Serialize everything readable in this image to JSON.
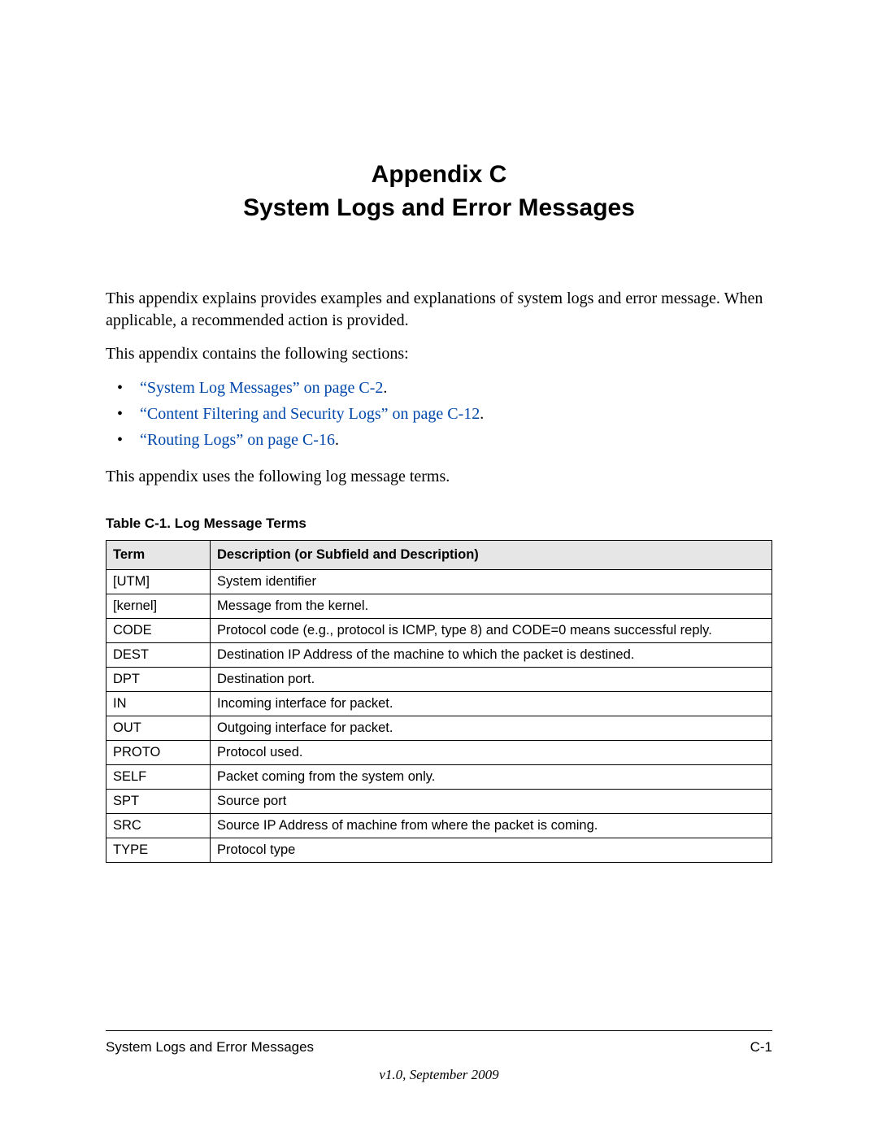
{
  "title": {
    "line1": "Appendix C",
    "line2": "System Logs and Error Messages"
  },
  "paragraphs": {
    "intro1": "This appendix explains provides examples and explanations of system logs and error message. When applicable, a recommended action is provided.",
    "intro2": "This appendix contains the following sections:",
    "after_list": "This appendix uses the following log message terms."
  },
  "bullets": [
    {
      "link_text": "“System Log Messages” on page C-2",
      "suffix": "."
    },
    {
      "link_text": "“Content Filtering and Security Logs” on page C-12",
      "suffix": "."
    },
    {
      "link_text": "“Routing Logs” on page C-16",
      "suffix": "."
    }
  ],
  "table": {
    "caption": "Table C-1.  Log Message Terms",
    "headers": {
      "term": "Term",
      "desc": "Description (or Subfield and Description)"
    },
    "rows": [
      {
        "term": "[UTM]",
        "desc": "System identifier"
      },
      {
        "term": "[kernel]",
        "desc": "Message from the kernel."
      },
      {
        "term": "CODE",
        "desc": "Protocol code (e.g., protocol is ICMP, type 8) and CODE=0 means successful reply."
      },
      {
        "term": "DEST",
        "desc": "Destination IP Address of the machine to which the packet is destined."
      },
      {
        "term": "DPT",
        "desc": "Destination port."
      },
      {
        "term": "IN",
        "desc": "Incoming interface for packet."
      },
      {
        "term": "OUT",
        "desc": "Outgoing interface for packet."
      },
      {
        "term": "PROTO",
        "desc": "Protocol used."
      },
      {
        "term": "SELF",
        "desc": "Packet coming from the system only."
      },
      {
        "term": "SPT",
        "desc": "Source port"
      },
      {
        "term": "SRC",
        "desc": "Source IP Address of machine from where the packet is coming."
      },
      {
        "term": "TYPE",
        "desc": "Protocol type"
      }
    ]
  },
  "footer": {
    "left": "System Logs and Error Messages",
    "right": "C-1",
    "version": "v1.0, September 2009"
  },
  "colors": {
    "link": "#0047ab",
    "header_bg": "#e6e6e6",
    "text": "#000000",
    "background": "#ffffff"
  }
}
